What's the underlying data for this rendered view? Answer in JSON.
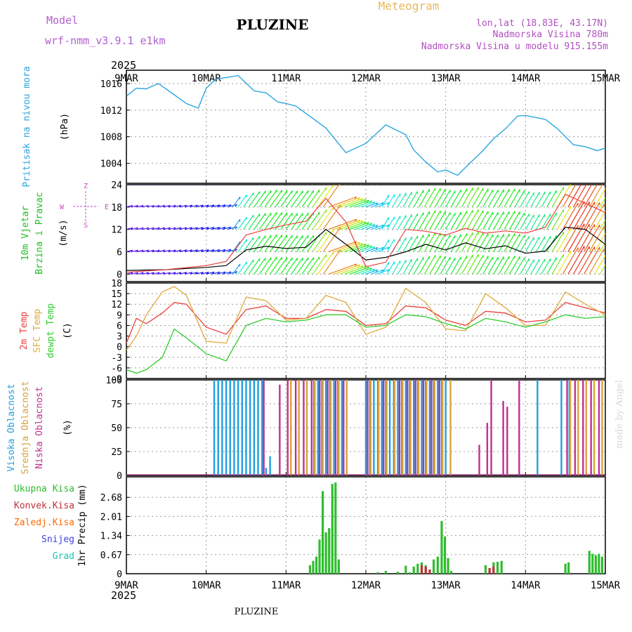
{
  "header": {
    "model_label": "Model",
    "model_name": "wrf-nmm_v3.9.1 e1km",
    "station": "PLUZINE",
    "title": "Meteogram",
    "lonlat": "lon,lat (18.83E, 43.17N)",
    "elevation": "Nadmorska Visina 780m",
    "model_elevation": "Nadmorska Visina u modelu 915.155m",
    "year": "2025",
    "footer_station": "PLUZINE",
    "credit": "made by Angel"
  },
  "colors": {
    "pressure": "#2aa5e0",
    "t2m": "#e8413c",
    "sfc": "#e0a93a",
    "dewpt": "#2ecc2e",
    "high_cloud": "#1f9fe0",
    "mid_cloud": "#d9a23a",
    "low_cloud": "#c0308f",
    "total_precip": "#2ebd2e",
    "conv_precip": "#c0303a",
    "frozen_precip": "#ff6a00",
    "snow": "#4040e0",
    "hail": "#20c0b0",
    "wind_dir_labels": "#c050c0"
  },
  "chart_data": [
    {
      "type": "line",
      "panel": "pressure",
      "ylabel_left": "Pritisak na nivou mora",
      "ylabel_unit": "(hPa)",
      "x_ticks": [
        "9MAR",
        "10MAR",
        "11MAR",
        "12MAR",
        "13MAR",
        "14MAR",
        "15MAR"
      ],
      "ylim": [
        1001,
        1018
      ],
      "y_ticks": [
        1004,
        1008,
        1012,
        1016
      ],
      "grid": true,
      "x": [
        0,
        0.125,
        0.25,
        0.4,
        0.6,
        0.75,
        0.9,
        1.0,
        1.125,
        1.25,
        1.4,
        1.6,
        1.75,
        1.9,
        2.0,
        2.125,
        2.25,
        2.5,
        2.75,
        3.0,
        3.25,
        3.5,
        3.6,
        3.75,
        3.9,
        4.0,
        4.15,
        4.3,
        4.45,
        4.6,
        4.75,
        4.9,
        5.0,
        5.25,
        5.4,
        5.6,
        5.75,
        5.9,
        6.0
      ],
      "values": [
        1014.1,
        1015.3,
        1015.2,
        1016.0,
        1014.3,
        1013.0,
        1012.3,
        1015.3,
        1016.7,
        1016.9,
        1017.2,
        1014.9,
        1014.6,
        1013.2,
        1013.0,
        1012.6,
        1011.5,
        1009.3,
        1005.6,
        1007.0,
        1009.8,
        1008.3,
        1006.0,
        1004.2,
        1002.7,
        1003.0,
        1002.2,
        1004.0,
        1005.7,
        1007.7,
        1009.2,
        1011.1,
        1011.2,
        1010.6,
        1009.2,
        1006.8,
        1006.5,
        1005.9,
        1006.3
      ]
    },
    {
      "type": "line",
      "panel": "wind",
      "ylabel_left": [
        "10m Vjetar",
        "Brzina i Pravac"
      ],
      "ylabel_unit": "(m/s)",
      "direction_legend": [
        "Z",
        "W",
        "E",
        "S"
      ],
      "ylim": [
        -2,
        24
      ],
      "y_ticks": [
        0,
        6,
        12,
        18,
        24
      ],
      "grid": true,
      "series": [
        {
          "color": "#000000",
          "x": [
            0,
            0.5,
            1.0,
            1.25,
            1.5,
            1.75,
            2.0,
            2.25,
            2.5,
            2.75,
            3.0,
            3.25,
            3.5,
            3.75,
            4.0,
            4.25,
            4.5,
            4.75,
            5.0,
            5.25,
            5.5,
            5.75,
            6.0
          ],
          "values": [
            1.0,
            1.2,
            1.8,
            2.3,
            6.5,
            7.5,
            6.9,
            7.2,
            12.0,
            8.0,
            3.8,
            4.5,
            6.0,
            8.0,
            6.5,
            8.4,
            6.8,
            7.6,
            5.6,
            6.2,
            12.6,
            12.0,
            8.0
          ]
        },
        {
          "color": "#e8413c",
          "x": [
            0,
            0.5,
            1.0,
            1.25,
            1.5,
            1.75,
            2.0,
            2.25,
            2.5,
            2.75,
            3.0,
            3.25,
            3.5,
            3.75,
            4.0,
            4.25,
            4.5,
            4.75,
            5.0,
            5.25,
            5.5,
            5.75,
            6.0
          ],
          "values": [
            0.5,
            1.2,
            2.3,
            3.4,
            10.5,
            12.0,
            13.2,
            14.2,
            20.3,
            14.0,
            2.0,
            3.2,
            12.0,
            11.5,
            10.5,
            12.3,
            11.0,
            11.6,
            11.0,
            12.6,
            21.4,
            19.0,
            16.5
          ]
        }
      ],
      "arrow_rows": [
        0,
        6,
        12,
        18,
        24
      ]
    },
    {
      "type": "line",
      "panel": "temperature",
      "ylabel_left": [
        "2m Temp",
        "SFC Temp",
        "dewpt Temp"
      ],
      "ylabel_unit": "(C)",
      "ylim": [
        -9,
        18
      ],
      "y_ticks": [
        -9,
        -6,
        -3,
        0,
        3,
        6,
        9,
        12,
        15,
        18
      ],
      "grid": true,
      "series": [
        {
          "name": "2m Temp",
          "color": "#e8413c",
          "x": [
            0,
            0.125,
            0.25,
            0.45,
            0.6,
            0.75,
            1.0,
            1.25,
            1.5,
            1.75,
            2.0,
            2.25,
            2.5,
            2.75,
            3.0,
            3.25,
            3.5,
            3.75,
            4.0,
            4.25,
            4.5,
            4.75,
            5.0,
            5.25,
            5.5,
            5.75,
            6.0
          ],
          "values": [
            1.0,
            8.0,
            6.5,
            9.5,
            12.5,
            12.0,
            5.5,
            3.5,
            10.5,
            11.5,
            8.0,
            8.0,
            10.5,
            10.0,
            6.0,
            6.5,
            11.5,
            11.0,
            7.5,
            6.0,
            10.0,
            9.5,
            7.0,
            7.5,
            12.5,
            11.0,
            9.5
          ]
        },
        {
          "name": "SFC Temp",
          "color": "#e0a93a",
          "x": [
            0,
            0.125,
            0.25,
            0.45,
            0.6,
            0.75,
            1.0,
            1.25,
            1.5,
            1.75,
            2.0,
            2.25,
            2.5,
            2.75,
            3.0,
            3.25,
            3.5,
            3.75,
            4.0,
            4.25,
            4.5,
            4.75,
            5.0,
            5.25,
            5.5,
            5.75,
            6.0
          ],
          "values": [
            -1.0,
            3.0,
            9.0,
            15.5,
            17.0,
            14.5,
            1.5,
            1.0,
            14.0,
            13.0,
            7.5,
            8.0,
            14.5,
            12.5,
            3.5,
            5.5,
            16.5,
            12.5,
            5.0,
            4.5,
            15.0,
            11.0,
            6.0,
            6.0,
            15.5,
            12.0,
            9.0
          ]
        },
        {
          "name": "dewpt Temp",
          "color": "#2ecc2e",
          "x": [
            0,
            0.125,
            0.25,
            0.45,
            0.6,
            0.75,
            1.0,
            1.25,
            1.5,
            1.75,
            2.0,
            2.25,
            2.5,
            2.75,
            3.0,
            3.25,
            3.5,
            3.75,
            4.0,
            4.25,
            4.5,
            4.75,
            5.0,
            5.25,
            5.5,
            5.75,
            6.0
          ],
          "values": [
            -6.5,
            -7.5,
            -6.5,
            -3.0,
            5.0,
            2.5,
            -2.0,
            -4.0,
            6.0,
            8.0,
            7.0,
            7.5,
            9.0,
            9.0,
            5.5,
            6.0,
            9.0,
            8.5,
            6.5,
            5.0,
            8.0,
            7.0,
            5.5,
            7.0,
            9.0,
            8.0,
            8.5
          ]
        }
      ]
    },
    {
      "type": "bar",
      "panel": "clouds",
      "ylabel_left": [
        "Visoka Oblacnost",
        "Srednja Oblacnost",
        "Niska Oblacnost"
      ],
      "ylabel_unit": "(%)",
      "ylim": [
        0,
        100
      ],
      "y_ticks": [
        0,
        25,
        50,
        75,
        100
      ],
      "grid": true,
      "series": [
        {
          "name": "Visoka Oblacnost",
          "color": "#1f9fe0",
          "x": [
            1.1,
            1.15,
            1.2,
            1.25,
            1.3,
            1.35,
            1.4,
            1.45,
            1.5,
            1.55,
            1.6,
            1.65,
            1.7,
            1.75,
            1.8,
            2.35,
            2.4,
            2.45,
            2.5,
            2.55,
            2.6,
            2.65,
            2.7,
            3.0,
            3.05,
            3.1,
            3.15,
            3.2,
            3.25,
            3.3,
            3.35,
            3.4,
            3.45,
            3.5,
            3.55,
            3.6,
            3.65,
            3.7,
            3.75,
            3.8,
            3.85,
            3.9,
            3.95,
            4.0,
            5.15,
            5.45,
            5.55
          ],
          "values": [
            100,
            100,
            100,
            100,
            100,
            100,
            100,
            100,
            100,
            100,
            100,
            100,
            100,
            8,
            20,
            100,
            100,
            100,
            100,
            100,
            100,
            100,
            100,
            100,
            100,
            100,
            100,
            100,
            100,
            100,
            100,
            100,
            100,
            100,
            100,
            100,
            100,
            100,
            100,
            100,
            100,
            100,
            100,
            100,
            100,
            100,
            100
          ]
        },
        {
          "name": "Srednja Oblacnost",
          "color": "#d9a23a",
          "x": [
            2.05,
            2.15,
            2.25,
            2.35,
            2.45,
            2.55,
            2.65,
            2.75,
            3.05,
            3.15,
            3.25,
            3.35,
            3.45,
            3.55,
            3.65,
            3.75,
            3.85,
            3.95,
            4.05,
            5.55,
            5.65,
            5.75,
            5.85,
            5.95
          ],
          "values": [
            100,
            100,
            100,
            100,
            100,
            100,
            100,
            100,
            100,
            100,
            100,
            100,
            100,
            100,
            100,
            100,
            100,
            100,
            100,
            100,
            100,
            100,
            100,
            100
          ]
        },
        {
          "name": "Niska Oblacnost",
          "color": "#c0308f",
          "x": [
            1.7,
            1.9,
            2.0,
            2.1,
            2.2,
            2.3,
            2.4,
            2.5,
            2.6,
            2.7,
            3.0,
            3.2,
            3.4,
            3.5,
            3.6,
            3.7,
            3.8,
            3.9,
            4.4,
            4.5,
            4.55,
            4.7,
            4.75,
            4.9,
            5.5,
            5.6,
            5.7,
            5.8,
            5.9
          ],
          "values": [
            100,
            95,
            100,
            100,
            100,
            100,
            100,
            100,
            100,
            100,
            100,
            100,
            100,
            100,
            100,
            100,
            100,
            100,
            32,
            55,
            100,
            78,
            72,
            100,
            100,
            100,
            100,
            100,
            100
          ]
        }
      ]
    },
    {
      "type": "bar",
      "panel": "precipitation",
      "ylabel_left": "1hr Precip",
      "ylabel_unit": "(mm)",
      "legend": [
        "Ukupna Kisa",
        "Konvek.Kisa",
        "Zaledj.Kisa",
        "Snijeg",
        "Grad"
      ],
      "ylim": [
        0,
        3.4
      ],
      "y_ticks": [
        0,
        0.67,
        1.34,
        2.01,
        2.68
      ],
      "grid": true,
      "series": [
        {
          "name": "Ukupna Kisa",
          "color": "#2ebd2e",
          "x": [
            2.3,
            2.34,
            2.38,
            2.42,
            2.46,
            2.5,
            2.54,
            2.58,
            2.62,
            2.66,
            3.15,
            3.25,
            3.4,
            3.5,
            3.55,
            3.6,
            3.65,
            3.7,
            3.75,
            3.85,
            3.9,
            3.95,
            3.99,
            4.03,
            4.07,
            4.5,
            4.6,
            4.65,
            4.7,
            5.5,
            5.54,
            5.8,
            5.84,
            5.88,
            5.92,
            5.96
          ],
          "values": [
            0.3,
            0.45,
            0.6,
            1.2,
            2.9,
            1.45,
            1.6,
            3.15,
            3.2,
            0.5,
            0.05,
            0.1,
            0.07,
            0.28,
            0.05,
            0.25,
            0.35,
            0.4,
            0.3,
            0.5,
            0.6,
            1.85,
            1.3,
            0.55,
            0.1,
            0.3,
            0.4,
            0.42,
            0.45,
            0.35,
            0.4,
            0.8,
            0.7,
            0.65,
            0.7,
            0.6
          ]
        },
        {
          "name": "Konvek.Kisa",
          "color": "#c0303a",
          "x": [
            3.7,
            3.75,
            3.8,
            4.55,
            4.6
          ],
          "values": [
            0.3,
            0.25,
            0.15,
            0.2,
            0.25
          ]
        }
      ]
    }
  ]
}
